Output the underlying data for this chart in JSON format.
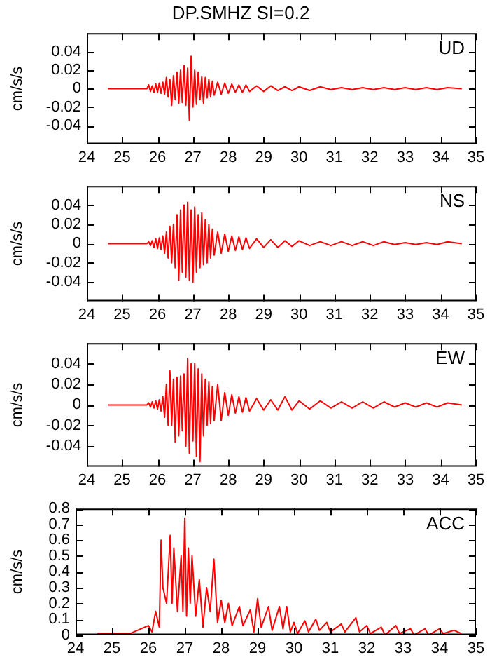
{
  "chart_data": [
    {
      "type": "line",
      "title": "DP.SMHZ SI=0.2",
      "ylabel": "cm/s/s",
      "annotations": [
        "UD"
      ],
      "marker": "none",
      "grid": false,
      "xlim": [
        24,
        35
      ],
      "xticks": [
        24,
        25,
        26,
        27,
        28,
        29,
        30,
        31,
        32,
        33,
        34,
        35
      ],
      "ylim": [
        -0.06,
        0.06
      ],
      "yticks": [
        -0.04,
        -0.02,
        0,
        0.02,
        0.04
      ],
      "x": [
        24.6,
        25.7,
        25.75,
        25.8,
        25.85,
        25.9,
        25.95,
        26.0,
        26.05,
        26.1,
        26.15,
        26.2,
        26.25,
        26.3,
        26.35,
        26.4,
        26.45,
        26.5,
        26.55,
        26.6,
        26.65,
        26.7,
        26.75,
        26.8,
        26.85,
        26.9,
        26.95,
        27.0,
        27.05,
        27.1,
        27.15,
        27.2,
        27.25,
        27.3,
        27.35,
        27.4,
        27.45,
        27.5,
        27.55,
        27.6,
        27.7,
        27.8,
        27.9,
        28.0,
        28.1,
        28.2,
        28.3,
        28.4,
        28.5,
        28.6,
        28.8,
        29.0,
        29.2,
        29.4,
        29.6,
        29.8,
        30.0,
        30.3,
        30.6,
        30.9,
        31.2,
        31.5,
        31.8,
        32.1,
        32.4,
        32.7,
        33.0,
        33.3,
        33.6,
        33.9,
        34.2,
        34.6
      ],
      "series": [
        {
          "color": "#ff0000",
          "values": [
            0,
            0,
            0.004,
            -0.003,
            0.003,
            -0.004,
            0.005,
            -0.004,
            0.006,
            -0.005,
            0.007,
            -0.006,
            0.012,
            -0.009,
            0.01,
            -0.018,
            0.014,
            -0.012,
            0.018,
            -0.016,
            0.02,
            -0.015,
            0.025,
            -0.018,
            0.022,
            -0.034,
            0.035,
            -0.02,
            0.02,
            -0.017,
            0.018,
            -0.012,
            0.013,
            -0.016,
            0.012,
            -0.01,
            0.01,
            -0.009,
            0.008,
            -0.007,
            0.007,
            -0.006,
            0.006,
            -0.005,
            0.005,
            -0.004,
            0.004,
            -0.004,
            0.004,
            -0.003,
            0.003,
            -0.003,
            0.003,
            -0.002,
            0.002,
            -0.002,
            0.002,
            -0.002,
            0.002,
            -0.001,
            0.001,
            -0.001,
            0.001,
            -0.001,
            0.001,
            -0.001,
            0.001,
            -0.001,
            0.001,
            -0.001,
            0.001,
            0
          ]
        }
      ]
    },
    {
      "type": "line",
      "ylabel": "cm/s/s",
      "annotations": [
        "NS"
      ],
      "marker": "none",
      "grid": false,
      "xlim": [
        24,
        35
      ],
      "xticks": [
        24,
        25,
        26,
        27,
        28,
        29,
        30,
        31,
        32,
        33,
        34,
        35
      ],
      "ylim": [
        -0.06,
        0.06
      ],
      "yticks": [
        -0.04,
        -0.02,
        0,
        0.02,
        0.04
      ],
      "x": [
        24.6,
        25.7,
        25.75,
        25.8,
        25.85,
        25.9,
        25.95,
        26.0,
        26.05,
        26.1,
        26.15,
        26.2,
        26.25,
        26.3,
        26.35,
        26.4,
        26.45,
        26.5,
        26.55,
        26.6,
        26.65,
        26.7,
        26.75,
        26.8,
        26.85,
        26.9,
        26.95,
        27.0,
        27.05,
        27.1,
        27.15,
        27.2,
        27.25,
        27.3,
        27.35,
        27.4,
        27.45,
        27.5,
        27.55,
        27.6,
        27.7,
        27.8,
        27.9,
        28.0,
        28.1,
        28.2,
        28.3,
        28.4,
        28.5,
        28.6,
        28.8,
        29.0,
        29.2,
        29.4,
        29.6,
        29.8,
        30.0,
        30.3,
        30.6,
        30.9,
        31.2,
        31.5,
        31.8,
        32.1,
        32.4,
        32.7,
        33.0,
        33.3,
        33.6,
        33.9,
        34.2,
        34.6
      ],
      "series": [
        {
          "color": "#ff0000",
          "values": [
            0,
            0,
            0.002,
            -0.002,
            0.003,
            -0.004,
            0.005,
            -0.005,
            0.006,
            -0.006,
            0.008,
            -0.01,
            0.012,
            -0.015,
            0.018,
            -0.02,
            0.02,
            -0.025,
            0.03,
            -0.038,
            0.035,
            -0.03,
            0.04,
            -0.035,
            0.043,
            -0.038,
            0.035,
            -0.04,
            0.038,
            -0.03,
            0.03,
            -0.025,
            0.032,
            -0.022,
            0.025,
            -0.02,
            0.02,
            -0.015,
            0.015,
            -0.012,
            0.012,
            -0.01,
            0.01,
            -0.008,
            0.008,
            -0.007,
            0.007,
            -0.006,
            0.006,
            -0.005,
            0.005,
            -0.004,
            0.004,
            -0.004,
            0.003,
            -0.003,
            0.003,
            -0.002,
            0.002,
            -0.002,
            0.002,
            -0.002,
            0.002,
            -0.002,
            0.002,
            -0.001,
            0.001,
            -0.001,
            0.001,
            -0.001,
            0.002,
            0
          ]
        }
      ]
    },
    {
      "type": "line",
      "ylabel": "cm/s/s",
      "annotations": [
        "EW"
      ],
      "marker": "none",
      "grid": false,
      "xlim": [
        24,
        35
      ],
      "xticks": [
        24,
        25,
        26,
        27,
        28,
        29,
        30,
        31,
        32,
        33,
        34,
        35
      ],
      "ylim": [
        -0.06,
        0.06
      ],
      "yticks": [
        -0.04,
        -0.02,
        0,
        0.02,
        0.04
      ],
      "x": [
        24.6,
        25.7,
        25.75,
        25.8,
        25.85,
        25.9,
        25.95,
        26.0,
        26.05,
        26.1,
        26.15,
        26.2,
        26.25,
        26.3,
        26.35,
        26.4,
        26.45,
        26.5,
        26.55,
        26.6,
        26.65,
        26.7,
        26.75,
        26.8,
        26.85,
        26.9,
        26.95,
        27.0,
        27.05,
        27.1,
        27.15,
        27.2,
        27.25,
        27.3,
        27.35,
        27.4,
        27.45,
        27.5,
        27.55,
        27.6,
        27.7,
        27.8,
        27.9,
        28.0,
        28.1,
        28.2,
        28.3,
        28.4,
        28.5,
        28.6,
        28.8,
        29.0,
        29.2,
        29.4,
        29.6,
        29.8,
        30.0,
        30.3,
        30.6,
        30.9,
        31.2,
        31.5,
        31.8,
        32.1,
        32.4,
        32.7,
        33.0,
        33.3,
        33.6,
        33.9,
        34.2,
        34.6
      ],
      "series": [
        {
          "color": "#ff0000",
          "values": [
            0,
            0,
            0.002,
            -0.002,
            0.003,
            -0.003,
            0.004,
            -0.004,
            0.005,
            -0.006,
            0.008,
            -0.012,
            0.02,
            -0.02,
            0.033,
            -0.02,
            0.025,
            -0.036,
            0.027,
            -0.03,
            0.028,
            -0.025,
            0.03,
            -0.04,
            0.045,
            -0.047,
            0.04,
            -0.035,
            0.04,
            -0.05,
            0.035,
            -0.055,
            0.03,
            -0.03,
            0.025,
            -0.02,
            0.022,
            -0.018,
            0.018,
            -0.015,
            0.02,
            -0.015,
            0.012,
            -0.01,
            0.01,
            -0.008,
            0.008,
            -0.007,
            0.007,
            -0.006,
            0.006,
            -0.005,
            0.005,
            -0.005,
            0.008,
            -0.005,
            0.004,
            -0.004,
            0.004,
            -0.003,
            0.003,
            -0.003,
            0.003,
            -0.003,
            0.003,
            -0.002,
            0.002,
            -0.002,
            0.002,
            -0.002,
            0.002,
            0
          ]
        }
      ]
    },
    {
      "type": "line",
      "ylabel": "cm/s/s",
      "annotations": [
        "ACC"
      ],
      "marker": "none",
      "grid": false,
      "xlim": [
        24,
        35
      ],
      "xticks": [
        24,
        25,
        26,
        27,
        28,
        29,
        30,
        31,
        32,
        33,
        34,
        35
      ],
      "ylim": [
        0,
        0.8
      ],
      "yticks": [
        0,
        0.1,
        0.2,
        0.3,
        0.4,
        0.5,
        0.6,
        0.7,
        0.8
      ],
      "x": [
        24.6,
        25.0,
        25.5,
        25.8,
        26.0,
        26.1,
        26.2,
        26.3,
        26.35,
        26.4,
        26.5,
        26.6,
        26.65,
        26.7,
        26.8,
        26.9,
        26.95,
        27.0,
        27.05,
        27.1,
        27.15,
        27.2,
        27.3,
        27.4,
        27.5,
        27.6,
        27.7,
        27.8,
        27.9,
        28.0,
        28.1,
        28.2,
        28.3,
        28.5,
        28.6,
        28.8,
        28.9,
        29.0,
        29.1,
        29.3,
        29.4,
        29.6,
        29.7,
        29.8,
        29.9,
        30.0,
        30.1,
        30.3,
        30.4,
        30.6,
        30.7,
        30.9,
        31.0,
        31.3,
        31.4,
        31.7,
        31.8,
        32.0,
        32.1,
        32.4,
        32.5,
        32.8,
        32.9,
        33.2,
        33.3,
        33.6,
        33.7,
        34.0,
        34.1,
        34.4,
        34.6
      ],
      "series": [
        {
          "color": "#ff0000",
          "values": [
            0.01,
            0.01,
            0.01,
            0.04,
            0.06,
            0.02,
            0.15,
            0.05,
            0.6,
            0.3,
            0.2,
            0.63,
            0.2,
            0.55,
            0.15,
            0.5,
            0.15,
            0.74,
            0.12,
            0.55,
            0.2,
            0.5,
            0.12,
            0.35,
            0.05,
            0.3,
            0.15,
            0.48,
            0.08,
            0.22,
            0.08,
            0.2,
            0.06,
            0.18,
            0.06,
            0.16,
            0.02,
            0.23,
            0.05,
            0.18,
            0.03,
            0.18,
            0.04,
            0.18,
            0.02,
            0.08,
            0.01,
            0.09,
            0.02,
            0.1,
            0.03,
            0.08,
            0.02,
            0.07,
            0.02,
            0.11,
            0.02,
            0.06,
            0.01,
            0.05,
            0,
            0.06,
            0.01,
            0.04,
            0,
            0.04,
            0,
            0.04,
            0.01,
            0.03,
            0.01
          ]
        }
      ]
    }
  ]
}
